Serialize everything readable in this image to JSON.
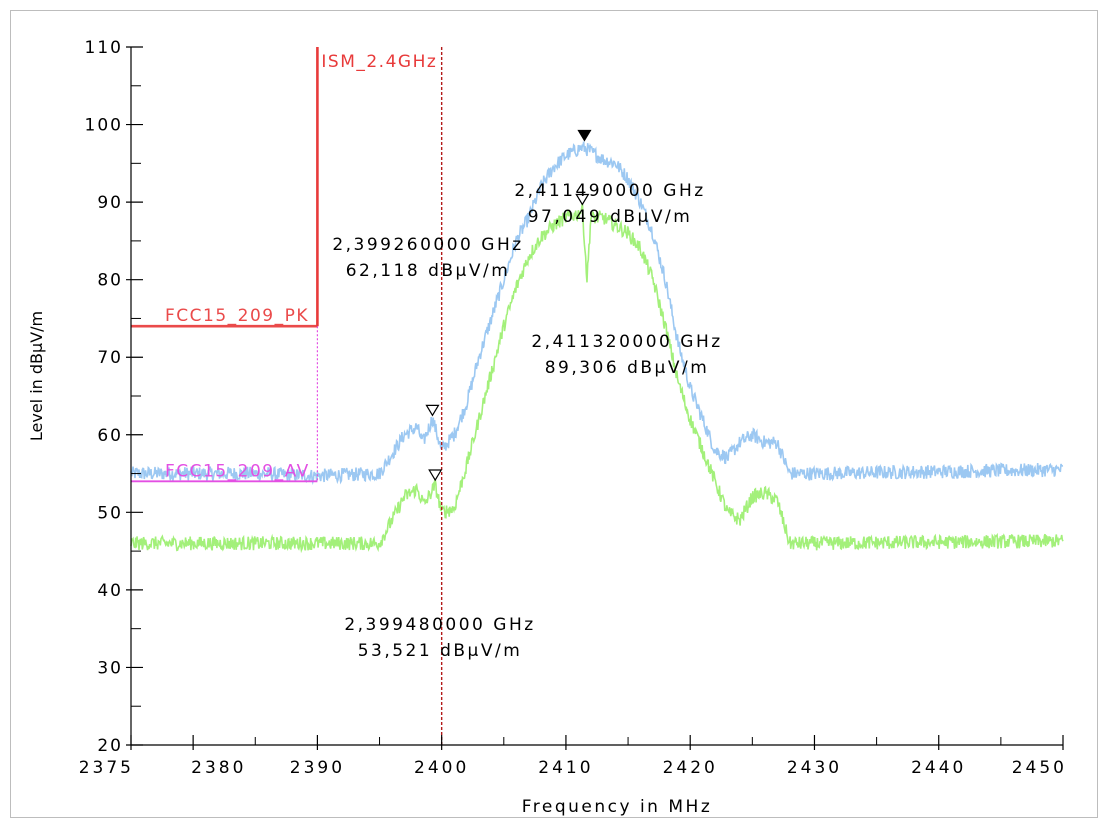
{
  "chart_data": {
    "type": "line",
    "xlabel": "Frequency in MHz",
    "ylabel": "Level in dBµV/m",
    "xlim": [
      2375,
      2450
    ],
    "ylim": [
      20,
      110
    ],
    "x_ticks": [
      {
        "value": 2375,
        "label": "2375"
      },
      {
        "value": 2380,
        "label": "2380"
      },
      {
        "value": 2390,
        "label": "2390"
      },
      {
        "value": 2400,
        "label": "2400"
      },
      {
        "value": 2410,
        "label": "2410"
      },
      {
        "value": 2420,
        "label": "2420"
      },
      {
        "value": 2430,
        "label": "2430"
      },
      {
        "value": 2440,
        "label": "2440"
      },
      {
        "value": 2450,
        "label": "2450"
      }
    ],
    "y_ticks": [
      20,
      30,
      40,
      50,
      60,
      70,
      80,
      90,
      100,
      110
    ],
    "grid": false,
    "series": [
      {
        "color": "#9cc8f2",
        "points": [
          [
            2375,
            55
          ],
          [
            2385,
            55
          ],
          [
            2390,
            54.7
          ],
          [
            2395,
            55
          ],
          [
            2396,
            57.5
          ],
          [
            2397,
            60
          ],
          [
            2398,
            61
          ],
          [
            2398.5,
            59
          ],
          [
            2399.26,
            62.1
          ],
          [
            2400,
            58
          ],
          [
            2401,
            60
          ],
          [
            2402,
            64
          ],
          [
            2403,
            70
          ],
          [
            2404,
            75
          ],
          [
            2405,
            80
          ],
          [
            2406,
            85
          ],
          [
            2407,
            88
          ],
          [
            2408,
            92
          ],
          [
            2409,
            94.5
          ],
          [
            2410,
            96
          ],
          [
            2411.2,
            97
          ],
          [
            2411.49,
            97
          ],
          [
            2412,
            96.5
          ],
          [
            2413,
            95.5
          ],
          [
            2414,
            95
          ],
          [
            2415,
            93
          ],
          [
            2416,
            90
          ],
          [
            2417,
            86
          ],
          [
            2418,
            80
          ],
          [
            2419,
            72
          ],
          [
            2420,
            66
          ],
          [
            2421,
            62
          ],
          [
            2422,
            58
          ],
          [
            2423,
            57
          ],
          [
            2424,
            59
          ],
          [
            2425,
            60
          ],
          [
            2426,
            59
          ],
          [
            2427,
            59
          ],
          [
            2428,
            55
          ],
          [
            2430,
            55
          ],
          [
            2450,
            55.5
          ]
        ]
      },
      {
        "color": "#a3f07a",
        "points": [
          [
            2375,
            46
          ],
          [
            2385,
            46
          ],
          [
            2395,
            46
          ],
          [
            2396,
            49
          ],
          [
            2397,
            52
          ],
          [
            2398,
            53
          ],
          [
            2398.6,
            51
          ],
          [
            2399.48,
            53.5
          ],
          [
            2400,
            50
          ],
          [
            2401,
            50.5
          ],
          [
            2402,
            56
          ],
          [
            2403,
            62
          ],
          [
            2404,
            68
          ],
          [
            2405,
            74
          ],
          [
            2406,
            79
          ],
          [
            2407,
            83
          ],
          [
            2408,
            85.5
          ],
          [
            2409,
            87
          ],
          [
            2410,
            88
          ],
          [
            2411,
            88.5
          ],
          [
            2411.32,
            89.3
          ],
          [
            2411.7,
            80
          ],
          [
            2412,
            88
          ],
          [
            2413,
            88
          ],
          [
            2414,
            87
          ],
          [
            2415,
            86
          ],
          [
            2416,
            84
          ],
          [
            2417,
            80
          ],
          [
            2418,
            74
          ],
          [
            2419,
            67
          ],
          [
            2420,
            62
          ],
          [
            2421,
            58
          ],
          [
            2422,
            54
          ],
          [
            2423,
            50
          ],
          [
            2424,
            49
          ],
          [
            2425,
            52
          ],
          [
            2426,
            52.5
          ],
          [
            2427,
            51.5
          ],
          [
            2428,
            46
          ],
          [
            2430,
            46
          ],
          [
            2450,
            46.3
          ]
        ]
      }
    ],
    "limit_lines": [
      {
        "label": "FCC15_209_PK",
        "color": "#ea4a4a",
        "value": 74,
        "x_range": [
          2375,
          2390
        ]
      },
      {
        "label": "FCC15_209_AV",
        "color": "#e34fe3",
        "value": 54,
        "x_range": [
          2375,
          2390
        ]
      }
    ],
    "band_edge": {
      "label": "ISM_2.4GHz",
      "color": "#e83a3a",
      "x": 2390,
      "ylim": [
        74,
        110
      ]
    },
    "reference_line": {
      "x": 2400,
      "color": "#b31a1a"
    },
    "markers": [
      {
        "freq_label": "2,411490000 GHz",
        "level_label": "97,049 dBµV/m",
        "x": 2411.49,
        "y": 97.049,
        "filled": true
      },
      {
        "freq_label": "2,411320000 GHz",
        "level_label": "89,306 dBµV/m",
        "x": 2411.32,
        "y": 89.306,
        "filled": false
      },
      {
        "freq_label": "2,399260000 GHz",
        "level_label": "62,118 dBµV/m",
        "x": 2399.26,
        "y": 62.118,
        "filled": false
      },
      {
        "freq_label": "2,399480000 GHz",
        "level_label": "53,521 dBµV/m",
        "x": 2399.48,
        "y": 53.521,
        "filled": false
      }
    ]
  }
}
